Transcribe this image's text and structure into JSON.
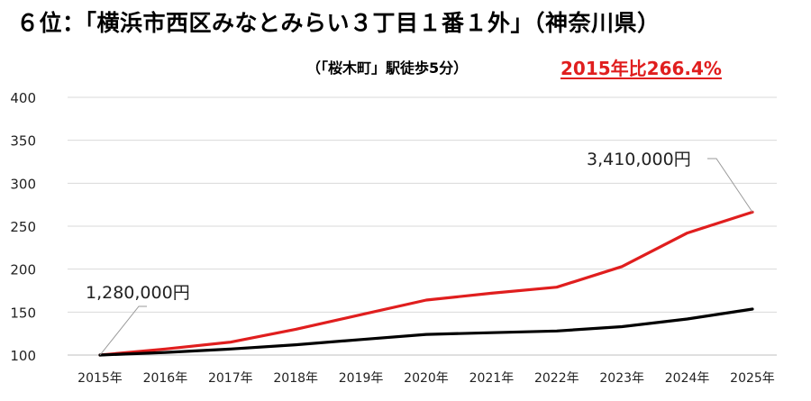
{
  "chart_data": {
    "type": "line",
    "title": "６位：「横浜市西区みなとみらい３丁目１番１外」（神奈川県）",
    "subtitle": "（「桜木町」駅徒歩5分）",
    "highlight": "2015年比266.4%",
    "categories": [
      "2015年",
      "2016年",
      "2017年",
      "2018年",
      "2019年",
      "2020年",
      "2021年",
      "2022年",
      "2023年",
      "2024年",
      "2025年"
    ],
    "series": [
      {
        "color": "#e01e1e",
        "values": [
          100,
          107,
          115,
          130,
          147,
          164,
          172,
          179,
          203,
          242,
          266.4
        ]
      },
      {
        "color": "#000000",
        "values": [
          100,
          103,
          107,
          112,
          118,
          124,
          126,
          128,
          133,
          142,
          153.5
        ]
      }
    ],
    "ylim": [
      100,
      400
    ],
    "yticks": [
      100,
      150,
      200,
      250,
      300,
      350,
      400
    ],
    "grid": true,
    "annotations": [
      {
        "text": "1,280,000円",
        "x": "2015年",
        "y": 100
      },
      {
        "text": "3,410,000円",
        "x": "2025年",
        "y": 266.4
      }
    ]
  }
}
